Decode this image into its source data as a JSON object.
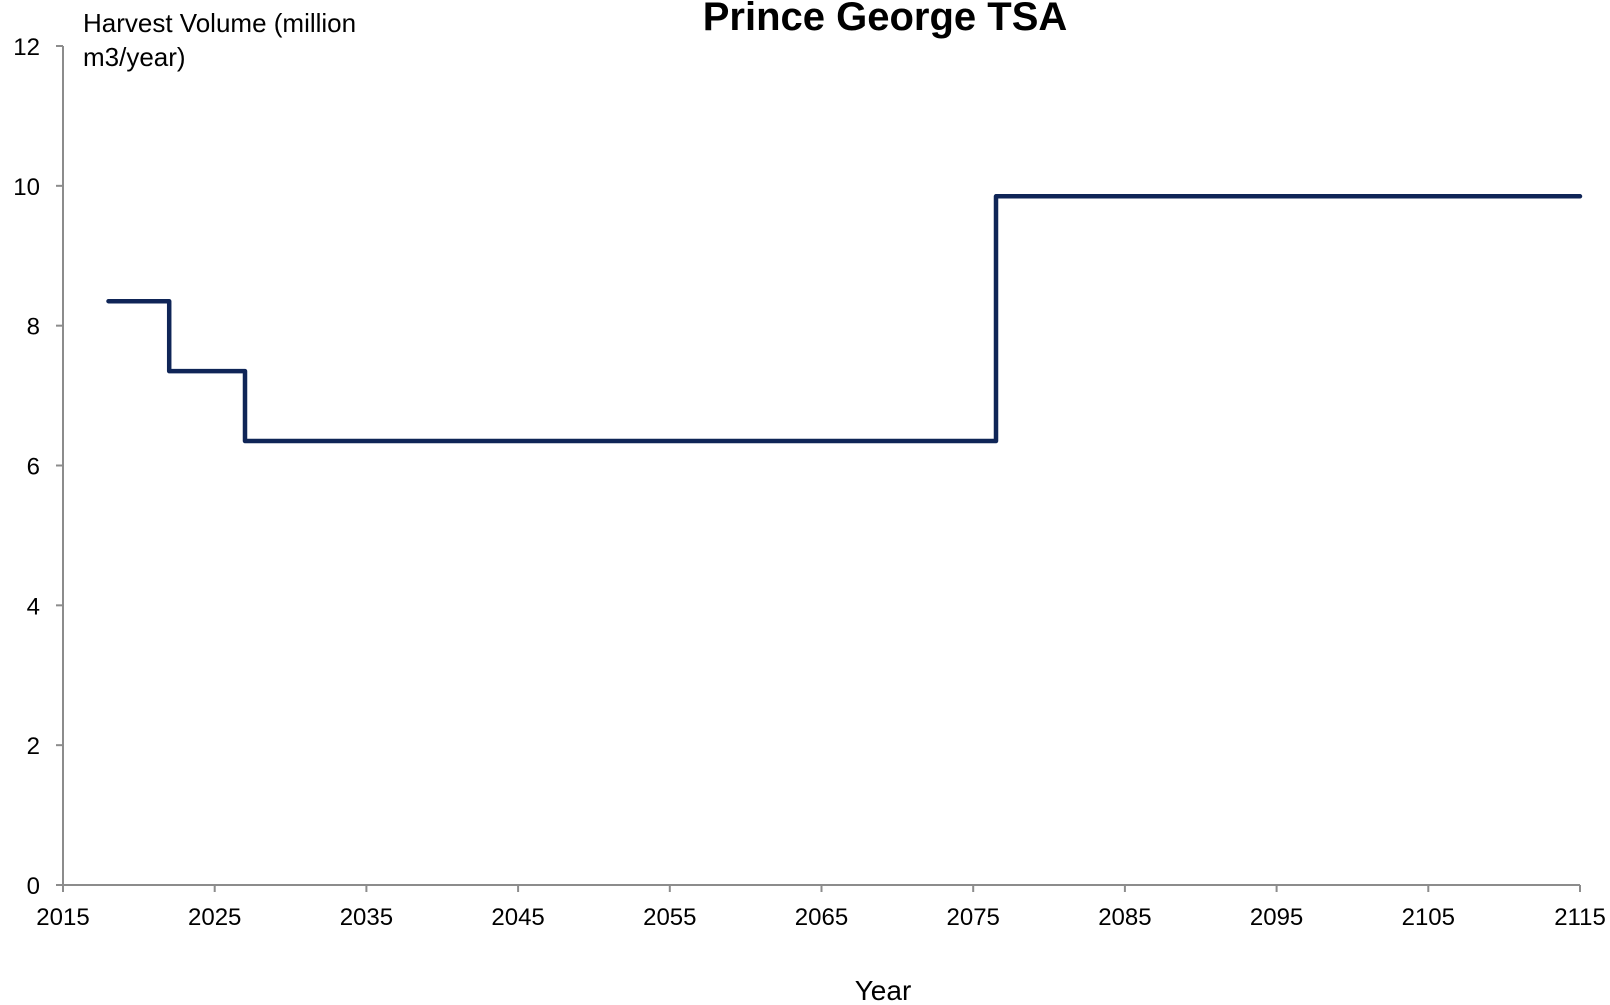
{
  "chart_data": {
    "type": "line",
    "title": "Prince George TSA",
    "ylabel_lines": [
      "Harvest Volume (million",
      "m3/year)"
    ],
    "xlabel": "Year",
    "xlim": [
      2015,
      2115
    ],
    "ylim": [
      0,
      12
    ],
    "xticks": [
      2015,
      2025,
      2035,
      2045,
      2055,
      2065,
      2075,
      2085,
      2095,
      2105,
      2115
    ],
    "yticks": [
      0,
      2,
      4,
      6,
      8,
      10,
      12
    ],
    "grid": false,
    "legend": "none",
    "series": [
      {
        "color": "#0f2557",
        "step": true,
        "x": [
          2018,
          2022,
          2027,
          2076.5,
          2115
        ],
        "y": [
          8.35,
          7.35,
          6.35,
          9.85,
          9.85
        ]
      }
    ]
  }
}
